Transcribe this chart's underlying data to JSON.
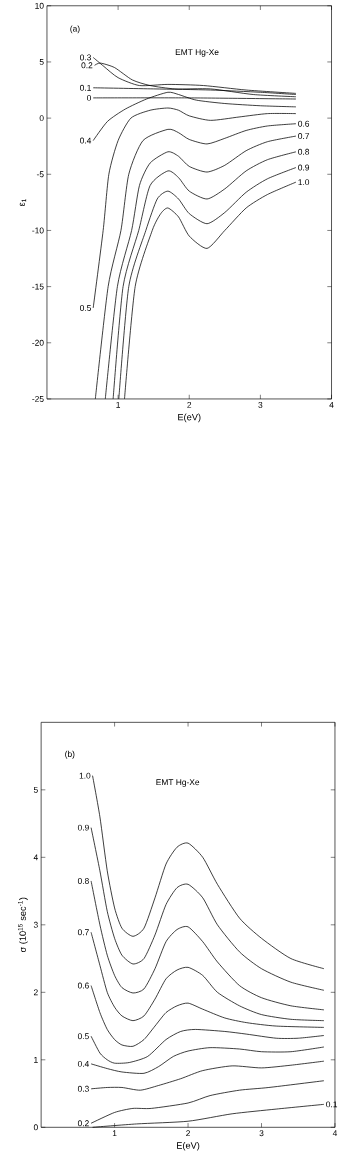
{
  "chart_data": [
    {
      "type": "line",
      "xlabel": "E(eV)",
      "ylabel": "ε$_{1}$",
      "annotations": [
        "(a)",
        "EMT Hg-Xe"
      ],
      "xlim": [
        0,
        4
      ],
      "ylim": [
        -25,
        10
      ],
      "xticks": [
        1,
        2,
        3,
        4
      ],
      "yticks": [
        -25,
        -20,
        -15,
        -10,
        -5,
        0,
        5,
        10
      ],
      "line_style": "solid",
      "series": [
        {
          "name": "0",
          "color": "#000000",
          "x": [
            0.65,
            2.0,
            3.5
          ],
          "values": [
            1.8,
            1.8,
            1.7
          ]
        },
        {
          "name": "0.1",
          "color": "#000000",
          "x": [
            0.65,
            1.5,
            2.3,
            3.0,
            3.5
          ],
          "values": [
            2.7,
            2.6,
            2.5,
            2.3,
            2.1
          ]
        },
        {
          "name": "0.2",
          "color": "#000000",
          "x": [
            0.67,
            0.75,
            0.95,
            1.2,
            1.45,
            1.8,
            2.3,
            2.9,
            3.5
          ],
          "values": [
            4.7,
            4.9,
            4.5,
            3.4,
            2.9,
            2.6,
            2.6,
            2.1,
            1.9
          ]
        },
        {
          "name": "0.3",
          "color": "#000000",
          "x": [
            0.65,
            0.8,
            1.0,
            1.3,
            1.7,
            2.2,
            2.8,
            3.5
          ],
          "values": [
            5.4,
            4.6,
            3.6,
            2.9,
            3.0,
            2.9,
            2.5,
            2.2
          ]
        },
        {
          "name": "0.4",
          "color": "#000000",
          "x": [
            0.65,
            0.85,
            1.1,
            1.4,
            1.7,
            1.85,
            2.1,
            2.5,
            3.0,
            3.5
          ],
          "values": [
            -2.0,
            -0.3,
            0.8,
            1.7,
            2.3,
            2.1,
            1.6,
            1.3,
            1.1,
            1.0
          ]
        },
        {
          "name": "0.5",
          "color": "#000000",
          "x": [
            0.65,
            0.79,
            0.87,
            1.0,
            1.18,
            1.45,
            1.7,
            1.85,
            2.0,
            2.3,
            2.7,
            3.1,
            3.5
          ],
          "values": [
            -16.9,
            -10,
            -5,
            -2,
            0,
            0.7,
            0.9,
            0.7,
            0.2,
            -0.2,
            0.1,
            0.4,
            0.4
          ]
        },
        {
          "name": "0.6",
          "color": "#000000",
          "x": [
            0.68,
            0.86,
            1.04,
            1.15,
            1.35,
            1.7,
            1.85,
            2.0,
            2.25,
            2.5,
            2.8,
            3.1,
            3.5
          ],
          "values": [
            -25,
            -15,
            -10,
            -5,
            -2,
            -1.0,
            -1.3,
            -1.9,
            -2.3,
            -1.8,
            -1.1,
            -0.7,
            -0.5
          ]
        },
        {
          "name": "0.7",
          "color": "#000000",
          "x": [
            0.82,
            0.99,
            1.19,
            1.3,
            1.45,
            1.7,
            1.85,
            2.0,
            2.25,
            2.5,
            2.8,
            3.1,
            3.5
          ],
          "values": [
            -25,
            -15,
            -10,
            -6,
            -4,
            -3.0,
            -3.4,
            -4.3,
            -4.8,
            -4.2,
            -2.9,
            -2.1,
            -1.6
          ]
        },
        {
          "name": "0.8",
          "color": "#000000",
          "x": [
            0.93,
            1.07,
            1.29,
            1.45,
            1.7,
            1.85,
            2.0,
            2.25,
            2.5,
            2.8,
            3.1,
            3.5
          ],
          "values": [
            -25,
            -15,
            -10,
            -6,
            -4.7,
            -5.3,
            -6.5,
            -7.2,
            -6.3,
            -4.7,
            -3.7,
            -3.0
          ]
        },
        {
          "name": "0.9",
          "color": "#000000",
          "x": [
            1.01,
            1.15,
            1.39,
            1.55,
            1.7,
            1.85,
            2.0,
            2.25,
            2.5,
            2.8,
            3.1,
            3.5
          ],
          "values": [
            -25,
            -15,
            -10,
            -7.2,
            -6.5,
            -7.2,
            -8.5,
            -9.4,
            -8.4,
            -6.6,
            -5.4,
            -4.4
          ]
        },
        {
          "name": "1.0",
          "color": "#000000",
          "x": [
            1.09,
            1.24,
            1.48,
            1.6,
            1.7,
            1.85,
            2.0,
            2.25,
            2.5,
            2.8,
            3.1,
            3.5
          ],
          "values": [
            -25,
            -15,
            -10,
            -8.5,
            -8.0,
            -8.8,
            -10.5,
            -11.6,
            -10,
            -8,
            -6.8,
            -5.7
          ]
        }
      ]
    },
    {
      "type": "line",
      "xlabel": "E(eV)",
      "ylabel": "σ (10$^{15}$ sec$^{-1}$)",
      "annotations": [
        "(b)",
        "EMT Hg-Xe"
      ],
      "xlim": [
        0,
        4
      ],
      "ylim": [
        0,
        6
      ],
      "xticks": [
        1,
        2,
        3,
        4
      ],
      "yticks": [
        0,
        1,
        2,
        3,
        4,
        5
      ],
      "line_style": "solid",
      "series": [
        {
          "name": "0.1",
          "color": "#000000",
          "x": [
            0.7,
            1.3,
            2.0,
            2.6,
            3.2,
            3.85
          ],
          "values": [
            0,
            0.05,
            0.09,
            0.2,
            0.27,
            0.34
          ]
        },
        {
          "name": "0.2",
          "color": "#000000",
          "x": [
            0.68,
            1.0,
            1.25,
            1.5,
            2.0,
            2.3,
            2.7,
            3.1,
            3.85
          ],
          "values": [
            0.06,
            0.22,
            0.28,
            0.28,
            0.36,
            0.47,
            0.55,
            0.59,
            0.69
          ]
        },
        {
          "name": "0.3",
          "color": "#000000",
          "x": [
            0.68,
            0.9,
            1.1,
            1.35,
            1.6,
            1.9,
            2.2,
            2.6,
            3.0,
            3.4,
            3.85
          ],
          "values": [
            0.57,
            0.59,
            0.59,
            0.55,
            0.62,
            0.72,
            0.84,
            0.91,
            0.88,
            0.92,
            0.98
          ]
        },
        {
          "name": "0.4",
          "color": "#000000",
          "x": [
            0.68,
            0.9,
            1.1,
            1.4,
            1.6,
            1.8,
            2.0,
            2.3,
            2.7,
            3.0,
            3.4,
            3.85
          ],
          "values": [
            0.94,
            0.87,
            0.82,
            0.8,
            0.9,
            1.05,
            1.13,
            1.18,
            1.16,
            1.12,
            1.12,
            1.19
          ]
        },
        {
          "name": "0.5",
          "color": "#000000",
          "x": [
            0.68,
            0.8,
            0.9,
            1.0,
            1.2,
            1.45,
            1.7,
            1.9,
            2.1,
            2.5,
            2.8,
            3.2,
            3.5,
            3.85
          ],
          "values": [
            1.35,
            1.1,
            1.0,
            0.95,
            0.96,
            1.05,
            1.3,
            1.42,
            1.45,
            1.42,
            1.38,
            1.32,
            1.32,
            1.36
          ]
        },
        {
          "name": "0.6",
          "color": "#000000",
          "x": [
            0.68,
            0.8,
            0.9,
            1.0,
            1.1,
            1.25,
            1.4,
            1.55,
            1.7,
            1.85,
            2.0,
            2.2,
            2.5,
            2.8,
            3.2,
            3.85
          ],
          "values": [
            2.1,
            1.7,
            1.45,
            1.3,
            1.22,
            1.2,
            1.3,
            1.5,
            1.7,
            1.8,
            1.84,
            1.75,
            1.62,
            1.55,
            1.5,
            1.48
          ]
        },
        {
          "name": "0.7",
          "color": "#000000",
          "x": [
            0.68,
            0.8,
            0.9,
            1.0,
            1.1,
            1.25,
            1.4,
            1.55,
            1.7,
            1.85,
            2.0,
            2.2,
            2.4,
            2.7,
            3.0,
            3.4,
            3.85
          ],
          "values": [
            2.89,
            2.4,
            2.0,
            1.78,
            1.65,
            1.58,
            1.65,
            1.9,
            2.2,
            2.33,
            2.37,
            2.25,
            2.0,
            1.8,
            1.67,
            1.6,
            1.58
          ]
        },
        {
          "name": "0.8",
          "color": "#000000",
          "x": [
            0.68,
            0.8,
            0.9,
            1.0,
            1.1,
            1.25,
            1.4,
            1.55,
            1.7,
            1.85,
            2.0,
            2.2,
            2.4,
            2.7,
            3.0,
            3.4,
            3.85
          ],
          "values": [
            3.65,
            3.0,
            2.55,
            2.25,
            2.07,
            1.99,
            2.05,
            2.35,
            2.75,
            2.93,
            2.97,
            2.75,
            2.45,
            2.1,
            1.92,
            1.8,
            1.74
          ]
        },
        {
          "name": "0.9",
          "color": "#000000",
          "x": [
            0.68,
            0.8,
            0.9,
            1.0,
            1.1,
            1.25,
            1.4,
            1.55,
            1.7,
            1.85,
            2.0,
            2.2,
            2.4,
            2.7,
            3.0,
            3.4,
            3.85
          ],
          "values": [
            4.44,
            3.8,
            3.2,
            2.8,
            2.55,
            2.42,
            2.5,
            2.85,
            3.3,
            3.55,
            3.6,
            3.4,
            3.0,
            2.6,
            2.35,
            2.15,
            2.03
          ]
        },
        {
          "name": "1.0",
          "color": "#000000",
          "x": [
            0.7,
            0.8,
            0.9,
            1.0,
            1.1,
            1.25,
            1.4,
            1.55,
            1.7,
            1.85,
            2.0,
            2.2,
            2.4,
            2.7,
            3.0,
            3.4,
            3.85
          ],
          "values": [
            5.21,
            4.6,
            3.8,
            3.25,
            2.95,
            2.83,
            2.95,
            3.4,
            3.9,
            4.15,
            4.21,
            4.0,
            3.6,
            3.1,
            2.8,
            2.5,
            2.35
          ]
        }
      ]
    }
  ]
}
